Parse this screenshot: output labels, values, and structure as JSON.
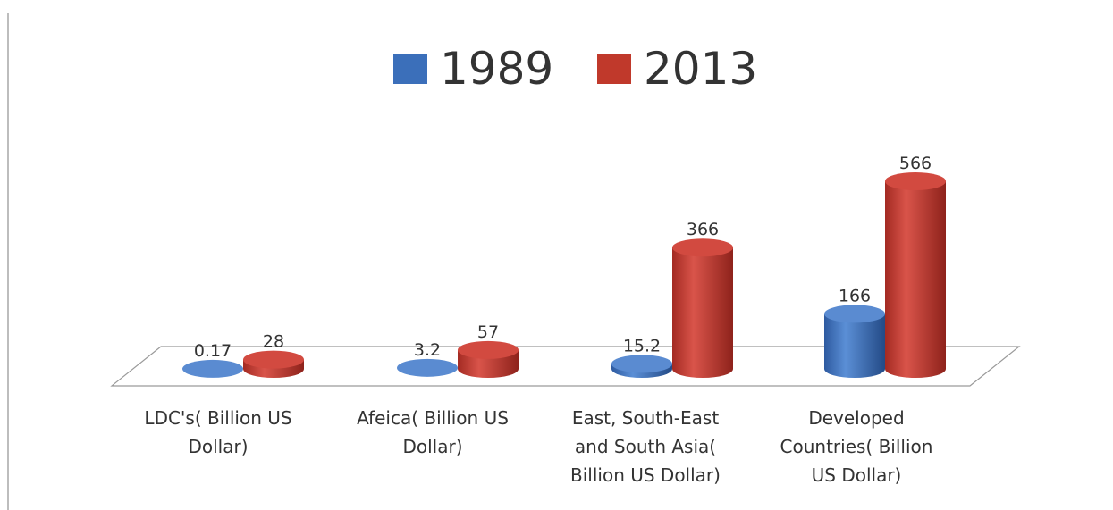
{
  "chart_data": {
    "type": "bar",
    "categories": [
      [
        "LDC's( Billion US",
        "Dollar)"
      ],
      [
        "Afeica( Billion US",
        "Dollar)"
      ],
      [
        "East, South-East",
        "and South Asia(",
        "Billion US Dollar)"
      ],
      [
        "Developed",
        "Countries( Billion",
        "US Dollar)"
      ]
    ],
    "series": [
      {
        "name": "1989",
        "values": [
          0.17,
          3.2,
          15.2,
          166
        ],
        "labels": [
          "0.17",
          "3.2",
          "15.2",
          "166"
        ],
        "color": "#3b6fba"
      },
      {
        "name": "2013",
        "values": [
          28,
          57,
          366,
          566
        ],
        "labels": [
          "28",
          "57",
          "366",
          "566"
        ],
        "color": "#c0392b"
      }
    ],
    "legend_position": "top",
    "ylim": [
      0,
      566
    ],
    "grid": false
  }
}
